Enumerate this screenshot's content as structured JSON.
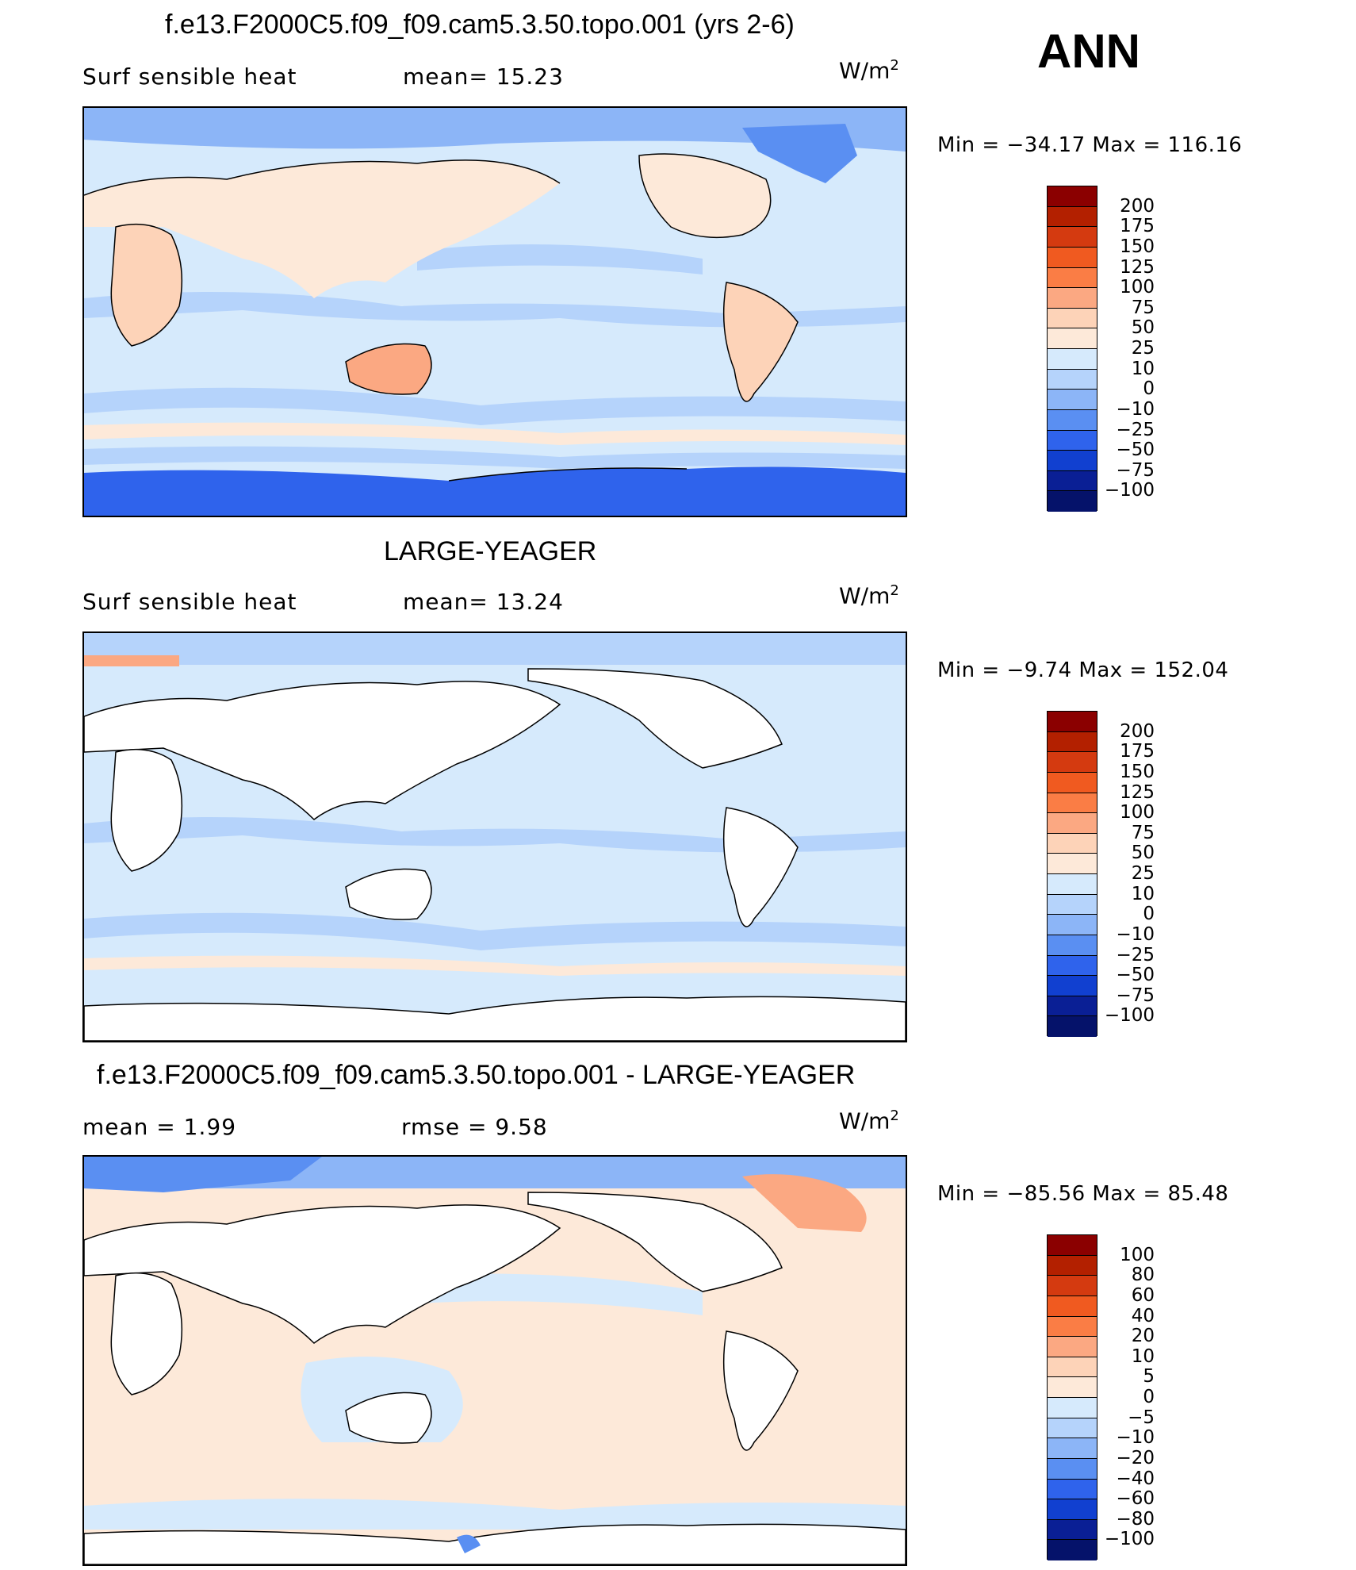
{
  "season": "ANN",
  "panels": [
    {
      "title": "f.e13.F2000C5.f09_f09.cam5.3.50.topo.001 (yrs 2-6)",
      "left_text": "Surf  sensible  heat",
      "mid_text": "mean=   15.23",
      "unit": "W/m",
      "unit_exp": "2",
      "minmax": "Min  =  −34.17  Max  =  116.16",
      "legend_levels": [
        "200",
        "175",
        "150",
        "125",
        "100",
        "75",
        "50",
        "25",
        "10",
        "0",
        "−10",
        "−25",
        "−50",
        "−75",
        "−100"
      ],
      "legend_colors": [
        "#8b0000",
        "#b32000",
        "#d43a10",
        "#f05a20",
        "#fa7d45",
        "#fba882",
        "#fdd3b8",
        "#fde9d9",
        "#d6eafc",
        "#b5d3fb",
        "#8cb5f7",
        "#5a8ff2",
        "#2f63ec",
        "#1140d0",
        "#0a1f95",
        "#05126a"
      ]
    },
    {
      "title": "LARGE-YEAGER",
      "left_text": "Surf  sensible  heat",
      "mid_text": "mean=   13.24",
      "unit": "W/m",
      "unit_exp": "2",
      "minmax": "Min  =    −9.74  Max  =  152.04",
      "legend_levels": [
        "200",
        "175",
        "150",
        "125",
        "100",
        "75",
        "50",
        "25",
        "10",
        "0",
        "−10",
        "−25",
        "−50",
        "−75",
        "−100"
      ],
      "legend_colors": [
        "#8b0000",
        "#b32000",
        "#d43a10",
        "#f05a20",
        "#fa7d45",
        "#fba882",
        "#fdd3b8",
        "#fde9d9",
        "#d6eafc",
        "#b5d3fb",
        "#8cb5f7",
        "#5a8ff2",
        "#2f63ec",
        "#1140d0",
        "#0a1f95",
        "#05126a"
      ]
    },
    {
      "title": "f.e13.F2000C5.f09_f09.cam5.3.50.topo.001 - LARGE-YEAGER",
      "left_text": "mean  =      1.99",
      "mid_text": "rmse  =      9.58",
      "unit": "W/m",
      "unit_exp": "2",
      "minmax": "Min  =  −85.56  Max  =    85.48",
      "legend_levels": [
        "100",
        "80",
        "60",
        "40",
        "20",
        "10",
        "5",
        "0",
        "−5",
        "−10",
        "−20",
        "−40",
        "−60",
        "−80",
        "−100"
      ],
      "legend_colors": [
        "#8b0000",
        "#b32000",
        "#d43a10",
        "#f05a20",
        "#fa7d45",
        "#fba882",
        "#fdd3b8",
        "#fde9d9",
        "#d6eafc",
        "#b5d3fb",
        "#8cb5f7",
        "#5a8ff2",
        "#2f63ec",
        "#1140d0",
        "#0a1f95",
        "#05126a"
      ]
    }
  ]
}
